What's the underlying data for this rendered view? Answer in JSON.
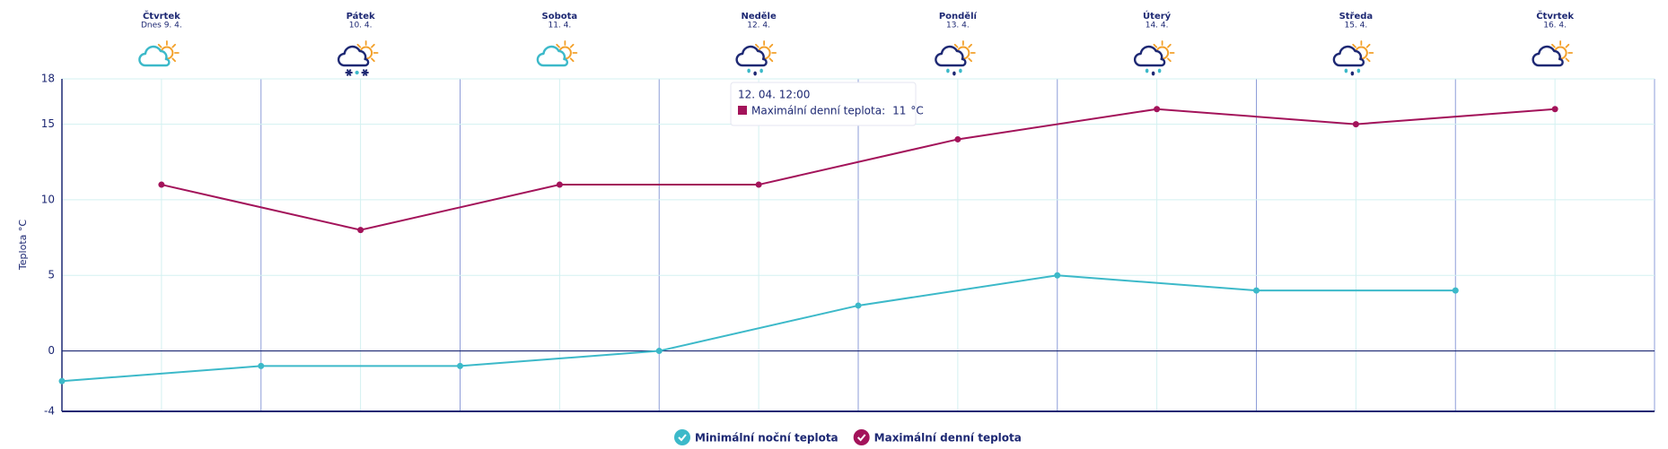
{
  "chart_data": {
    "type": "line",
    "y_label": "Teplota °C",
    "days": [
      {
        "name": "Čtvrtek",
        "date": "Dnes 9. 4.",
        "icon": "partly-cloudy"
      },
      {
        "name": "Pátek",
        "date": "10. 4.",
        "icon": "snow"
      },
      {
        "name": "Sobota",
        "date": "11. 4.",
        "icon": "partly-cloudy"
      },
      {
        "name": "Neděle",
        "date": "12. 4.",
        "icon": "rain"
      },
      {
        "name": "Pondělí",
        "date": "13. 4.",
        "icon": "rain"
      },
      {
        "name": "Úterý",
        "date": "14. 4.",
        "icon": "rain"
      },
      {
        "name": "Středa",
        "date": "15. 4.",
        "icon": "rain"
      },
      {
        "name": "Čtvrtek",
        "date": "16. 4.",
        "icon": "cloudy"
      }
    ],
    "series": [
      {
        "name": "Minimální noční teplota",
        "color": "#3cb9c9",
        "values": [
          -2,
          -1,
          -1,
          0,
          3,
          5,
          4,
          4
        ]
      },
      {
        "name": "Maximální denní teplota",
        "color": "#a3135a",
        "values": [
          11,
          8,
          11,
          11,
          14,
          16,
          15,
          16
        ]
      }
    ],
    "ylim": [
      -4,
      18
    ],
    "yticks": [
      -4,
      0,
      5,
      10,
      15,
      18
    ],
    "grid": true,
    "tooltip": {
      "title": "12. 04. 12:00",
      "label": "Maximální denní teplota:",
      "unit": "°C"
    }
  }
}
